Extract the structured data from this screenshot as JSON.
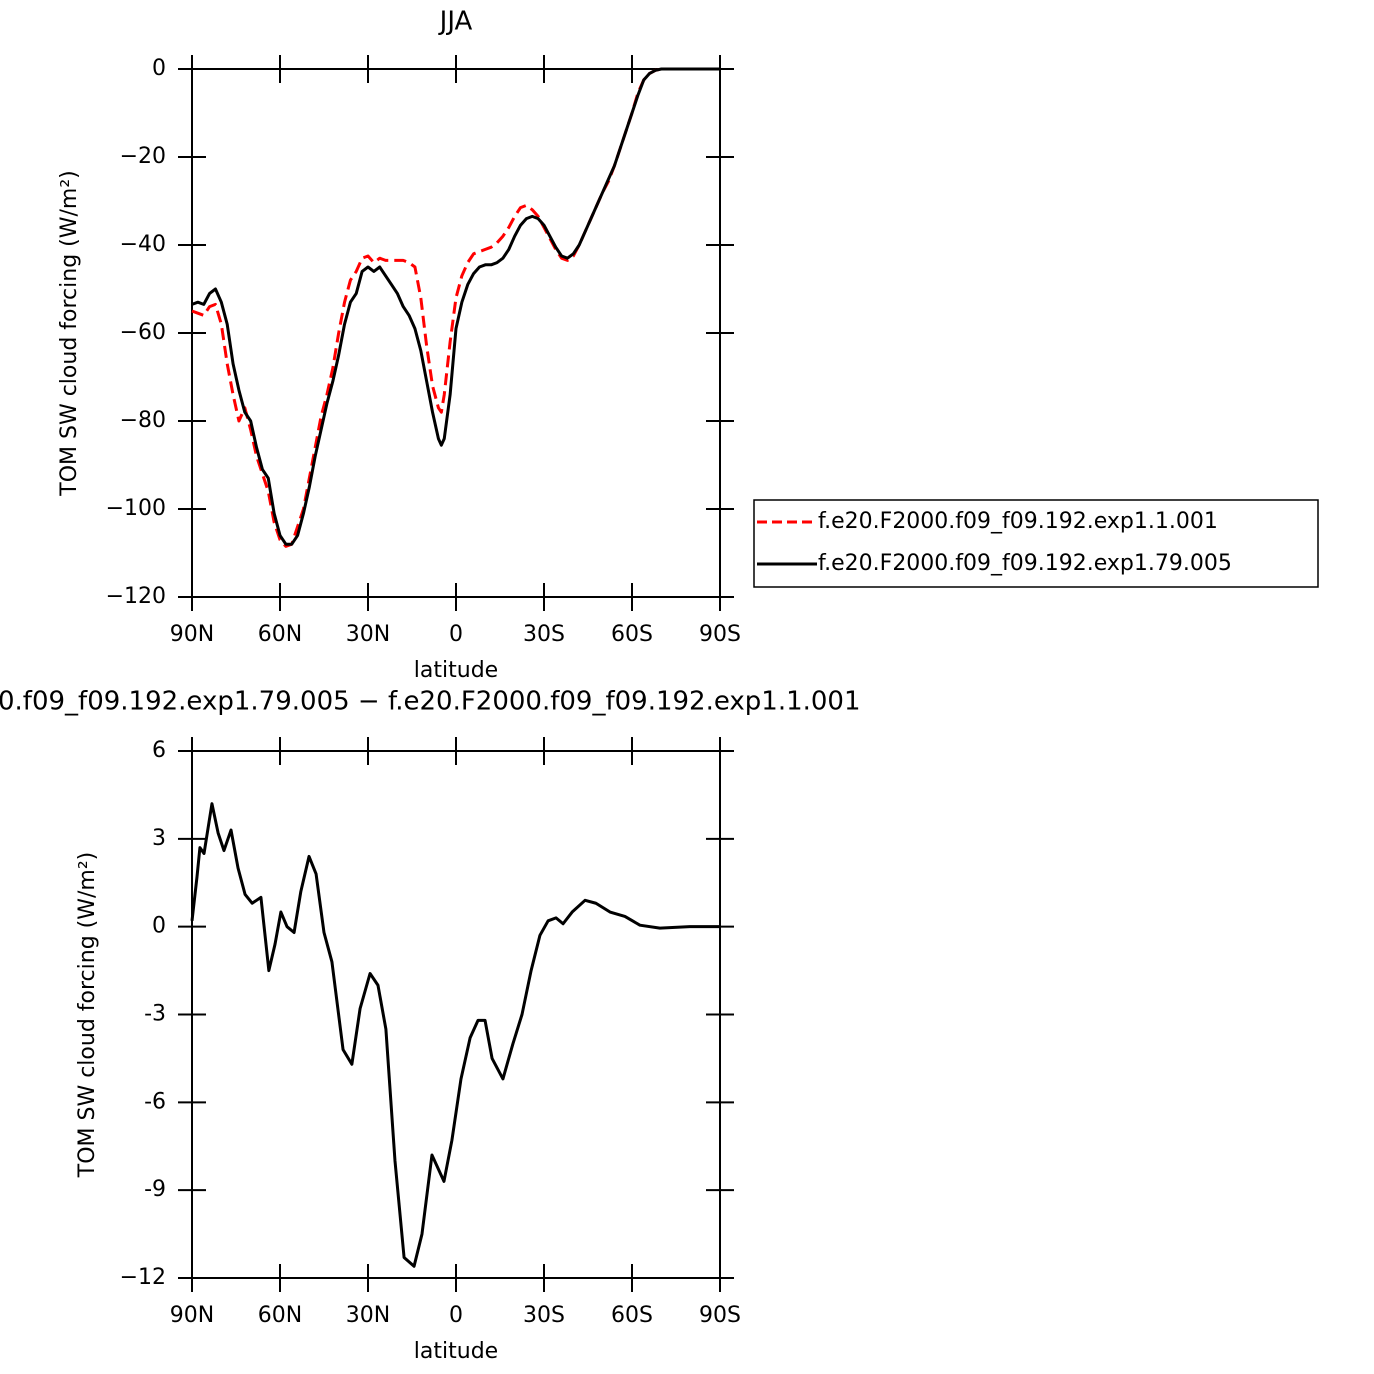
{
  "chart_data": [
    {
      "type": "line",
      "title": "JJA",
      "xlabel": "latitude",
      "ylabel": "TOM SW cloud forcing (W/m²)",
      "x": [
        90,
        88,
        86,
        84,
        82,
        80,
        78,
        76,
        74,
        72,
        70,
        68,
        66,
        64,
        62,
        60,
        58,
        56,
        54,
        52,
        50,
        48,
        46,
        44,
        42,
        40,
        38,
        36,
        34,
        32,
        30,
        28,
        26,
        24,
        22,
        20,
        18,
        16,
        14,
        12,
        10,
        8,
        6,
        5,
        4,
        2,
        0,
        -2,
        -4,
        -6,
        -8,
        -10,
        -12,
        -14,
        -16,
        -18,
        -20,
        -22,
        -24,
        -26,
        -28,
        -30,
        -32,
        -34,
        -36,
        -38,
        -40,
        -42,
        -44,
        -46,
        -48,
        -50,
        -52,
        -54,
        -56,
        -58,
        -60,
        -62,
        -64,
        -66,
        -68,
        -70,
        -75,
        -80,
        -90
      ],
      "series": [
        {
          "name": "f.e20.F2000.f09_f09.192.exp1.1.001",
          "color": "#ff0000",
          "dash": true,
          "values": [
            -55,
            -55.5,
            -56,
            -54,
            -53.5,
            -58,
            -67,
            -74,
            -80,
            -77,
            -82,
            -88,
            -92,
            -96,
            -103,
            -107,
            -108.5,
            -108,
            -104,
            -100,
            -93,
            -86,
            -79,
            -74,
            -68,
            -60,
            -53,
            -48,
            -46,
            -43,
            -42.5,
            -44,
            -43,
            -43.5,
            -43.5,
            -43.5,
            -43.5,
            -44,
            -45,
            -52,
            -63,
            -72,
            -77,
            -78,
            -74,
            -62,
            -52,
            -47,
            -44,
            -42,
            -41.5,
            -41,
            -40.5,
            -39.5,
            -38,
            -36,
            -33.5,
            -31.5,
            -31,
            -32,
            -33.5,
            -36,
            -38.5,
            -41,
            -43,
            -43.5,
            -42.5,
            -40,
            -37,
            -34,
            -31,
            -28,
            -25.5,
            -22,
            -18,
            -14,
            -10,
            -5.5,
            -2.5,
            -1,
            -0.3,
            0,
            0,
            0,
            0
          ]
        },
        {
          "name": "f.e20.F2000.f09_f09.192.exp1.79.005",
          "color": "#000000",
          "dash": false,
          "values": [
            -53.5,
            -53,
            -53.5,
            -51,
            -50,
            -53,
            -58,
            -67,
            -73,
            -78,
            -80,
            -86,
            -91,
            -93,
            -101,
            -106,
            -108,
            -108,
            -106,
            -101,
            -95,
            -88,
            -82,
            -76,
            -71,
            -65,
            -58,
            -53,
            -51,
            -46,
            -45,
            -46,
            -45,
            -47,
            -49,
            -51,
            -54,
            -56,
            -59,
            -64,
            -71,
            -78,
            -84,
            -85.5,
            -84,
            -74,
            -59,
            -53,
            -49,
            -46.5,
            -45,
            -44.5,
            -44.5,
            -44,
            -43,
            -41,
            -38,
            -35.5,
            -34,
            -33.5,
            -34,
            -35.5,
            -38,
            -40.5,
            -42.5,
            -43,
            -42,
            -40,
            -37,
            -34,
            -31,
            -28,
            -25,
            -22,
            -18,
            -14,
            -10,
            -6,
            -2.5,
            -1,
            -0.3,
            0,
            0,
            0,
            0
          ]
        }
      ],
      "xlim": [
        90,
        -90
      ],
      "xticks": [
        {
          "value": 90,
          "label": "90N"
        },
        {
          "value": 60,
          "label": "60N"
        },
        {
          "value": 30,
          "label": "30N"
        },
        0,
        {
          "value": -30,
          "label": "30S"
        },
        {
          "value": -60,
          "label": "60S"
        },
        {
          "value": -90,
          "label": "90S"
        }
      ],
      "ylim": [
        -120,
        0
      ],
      "yticks": [
        0,
        {
          "value": -20,
          "label": "−20"
        },
        {
          "value": -40,
          "label": "−40"
        },
        {
          "value": -60,
          "label": "−60"
        },
        {
          "value": -80,
          "label": "−80"
        },
        {
          "value": -100,
          "label": "−100"
        },
        {
          "value": -120,
          "label": "−120"
        }
      ],
      "legend": "right"
    },
    {
      "type": "line",
      "title": "0.f09_f09.192.exp1.79.005 − f.e20.F2000.f09_f09.192.exp1.1.001",
      "xlabel": "latitude",
      "ylabel": "TOM SW cloud forcing (W/m²)",
      "x": [
        90,
        88.3,
        87.3,
        85.9,
        83.2,
        81.1,
        79.1,
        76.7,
        74.3,
        71.9,
        69.5,
        66.5,
        63.8,
        61.7,
        59.7,
        57.6,
        55.2,
        52.9,
        50.1,
        47.7,
        45,
        42.3,
        38.5,
        35.5,
        32.7,
        29.3,
        26.6,
        23.9,
        20.8,
        17.7,
        14.3,
        11.6,
        8.2,
        4.1,
        1.4,
        -1.7,
        -4.8,
        -7.5,
        -9.9,
        -12.3,
        -16,
        -19.4,
        -22.5,
        -25.6,
        -28.6,
        -31.4,
        -34.1,
        -36.5,
        -39.6,
        -44,
        -47.7,
        -52.5,
        -57.6,
        -62.7,
        -69.5,
        -79.7,
        -90
      ],
      "color": "#000000",
      "values": [
        0.2,
        1.7,
        2.7,
        2.5,
        4.2,
        3.2,
        2.6,
        3.3,
        2,
        1.1,
        0.8,
        1,
        -1.5,
        -0.6,
        0.5,
        0,
        -0.2,
        1.2,
        2.4,
        1.8,
        -0.2,
        -1.2,
        -4.2,
        -4.7,
        -2.8,
        -1.6,
        -2,
        -3.5,
        -8,
        -11.3,
        -11.6,
        -10.5,
        -7.8,
        -8.7,
        -7.3,
        -5.2,
        -3.8,
        -3.2,
        -3.2,
        -4.5,
        -5.2,
        -4,
        -3,
        -1.5,
        -0.3,
        0.2,
        0.3,
        0.1,
        0.5,
        0.9,
        0.8,
        0.5,
        0.35,
        0.05,
        -0.05,
        0,
        0
      ],
      "xlim": [
        90,
        -90
      ],
      "xticks": [
        {
          "value": 90,
          "label": "90N"
        },
        {
          "value": 60,
          "label": "60N"
        },
        {
          "value": 30,
          "label": "30N"
        },
        0,
        {
          "value": -30,
          "label": "30S"
        },
        {
          "value": -60,
          "label": "60S"
        },
        {
          "value": -90,
          "label": "90S"
        }
      ],
      "ylim": [
        -12,
        6
      ],
      "yticks": [
        6,
        3,
        0,
        -3,
        -6,
        -9,
        {
          "value": -12,
          "label": "−12"
        }
      ]
    }
  ]
}
